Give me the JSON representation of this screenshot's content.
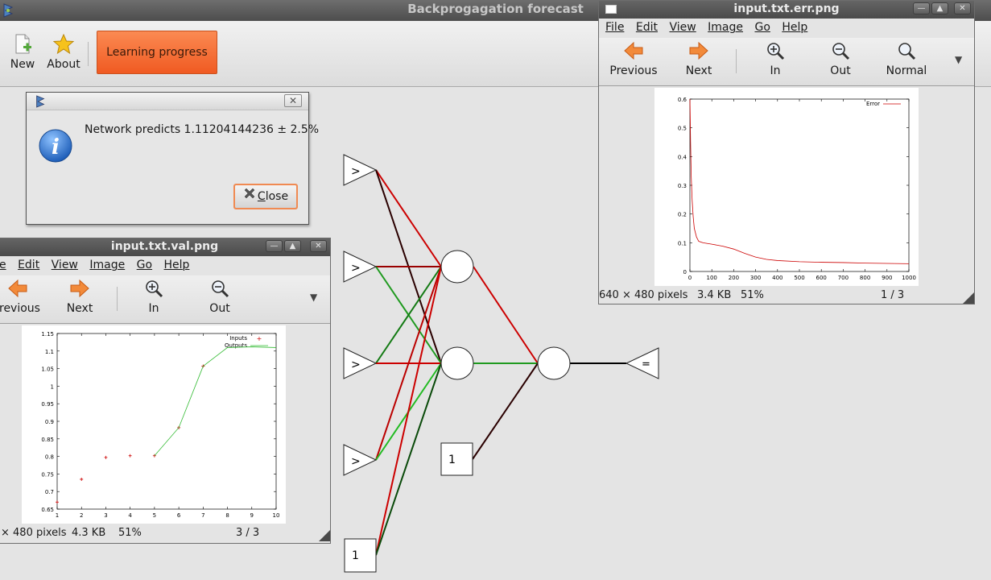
{
  "main_window": {
    "title": "Backprogagation forecast",
    "toolbar": {
      "new_label": "New",
      "about_label": "About",
      "learning_label": "Learning progress"
    }
  },
  "info_dialog": {
    "message": "Network predicts 1.11204144236 ± 2.5%",
    "close_label": "Close",
    "close_mnemonic": "C",
    "close_rest": "lose"
  },
  "network": {
    "input_node_label": ">",
    "bias_label": "1",
    "output_node_label": "="
  },
  "err_viewer": {
    "title": "input.txt.err.png",
    "menu": [
      "File",
      "Edit",
      "View",
      "Image",
      "Go",
      "Help"
    ],
    "toolbar": [
      "Previous",
      "Next",
      "In",
      "Out",
      "Normal"
    ],
    "status_size": "640 × 480 pixels",
    "status_file": "3.4 KB",
    "status_zoom": "51%",
    "status_page": "1 / 3"
  },
  "val_viewer": {
    "title": "input.txt.val.png",
    "menu": [
      "e",
      "Edit",
      "View",
      "Image",
      "Go",
      "Help"
    ],
    "toolbar": [
      "revious",
      "Next",
      "In",
      "Out"
    ],
    "status_size": "× 480 pixels",
    "status_file": "4.3 KB",
    "status_zoom": "51%",
    "status_page": "3 / 3"
  },
  "chart_data": [
    {
      "type": "line",
      "legend": [
        "Error"
      ],
      "legend_placement": "top-right",
      "x_ticks": [
        "0",
        "100",
        "200",
        "300",
        "400",
        "500",
        "600",
        "700",
        "800",
        "900",
        "1000"
      ],
      "y_ticks": [
        "0",
        "0.1",
        "0.2",
        "0.3",
        "0.4",
        "0.5",
        "0.6"
      ],
      "xlim": [
        0,
        1000
      ],
      "ylim": [
        0,
        0.6
      ],
      "series": [
        {
          "name": "Error",
          "color": "#cc0000",
          "x": [
            0,
            3,
            6,
            10,
            15,
            20,
            30,
            40,
            60,
            100,
            150,
            200,
            250,
            300,
            350,
            400,
            500,
            600,
            700,
            800,
            900,
            1000
          ],
          "y": [
            0.6,
            0.45,
            0.33,
            0.25,
            0.19,
            0.15,
            0.12,
            0.105,
            0.1,
            0.095,
            0.088,
            0.078,
            0.063,
            0.05,
            0.042,
            0.038,
            0.034,
            0.032,
            0.031,
            0.029,
            0.028,
            0.027
          ]
        }
      ]
    },
    {
      "type": "scatter",
      "legend": [
        "Inputs",
        "Outputs"
      ],
      "legend_placement": "top-right",
      "x_ticks": [
        "1",
        "2",
        "3",
        "4",
        "5",
        "6",
        "7",
        "8",
        "9",
        "10"
      ],
      "y_ticks": [
        "0.65",
        "0.7",
        "0.75",
        "0.8",
        "0.85",
        "0.9",
        "0.95",
        "1",
        "1.05",
        "1.1",
        "1.15"
      ],
      "xlim": [
        1,
        10
      ],
      "ylim": [
        0.65,
        1.15
      ],
      "series": [
        {
          "name": "Inputs",
          "color": "#cc0000",
          "x": [
            1,
            2,
            3,
            4,
            5,
            6,
            7
          ],
          "y": [
            0.67,
            0.735,
            0.797,
            0.802,
            0.802,
            0.882,
            1.057
          ]
        },
        {
          "name": "Outputs",
          "color": "#33bb33",
          "x": [
            5,
            6,
            7,
            8,
            9,
            10
          ],
          "y": [
            0.802,
            0.882,
            1.057,
            1.11,
            1.112,
            1.11
          ]
        }
      ]
    }
  ]
}
